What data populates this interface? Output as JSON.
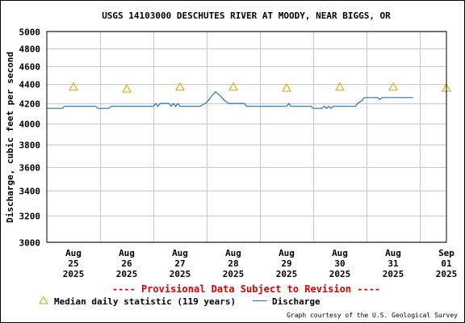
{
  "chart_data": {
    "type": "line",
    "title": "USGS 14103000 DESCHUTES RIVER AT MOODY, NEAR BIGGS, OR",
    "ylabel": "Discharge, cubic feet per second",
    "xlabel": "",
    "y_scale": "log",
    "ylim": [
      3000,
      5000
    ],
    "y_ticks": [
      {
        "value": 3000,
        "label": "3000"
      },
      {
        "value": 3200,
        "label": "3200"
      },
      {
        "value": 3400,
        "label": "3400"
      },
      {
        "value": 3600,
        "label": "3600"
      },
      {
        "value": 3800,
        "label": "3800"
      },
      {
        "value": 4000,
        "label": "4000"
      },
      {
        "value": 4200,
        "label": "4200"
      },
      {
        "value": 4400,
        "label": "4400"
      },
      {
        "value": 4600,
        "label": "4600"
      },
      {
        "value": 4800,
        "label": "4800"
      },
      {
        "value": 5000,
        "label": "5000"
      }
    ],
    "xlim": [
      "2025-08-25 00:00",
      "2025-09-01 12:00"
    ],
    "x_ticks": [
      {
        "date": "2025-08-25 12:00",
        "month": "Aug",
        "day": "25",
        "year": "2025"
      },
      {
        "date": "2025-08-26 12:00",
        "month": "Aug",
        "day": "26",
        "year": "2025"
      },
      {
        "date": "2025-08-27 12:00",
        "month": "Aug",
        "day": "27",
        "year": "2025"
      },
      {
        "date": "2025-08-28 12:00",
        "month": "Aug",
        "day": "28",
        "year": "2025"
      },
      {
        "date": "2025-08-29 12:00",
        "month": "Aug",
        "day": "29",
        "year": "2025"
      },
      {
        "date": "2025-08-30 12:00",
        "month": "Aug",
        "day": "30",
        "year": "2025"
      },
      {
        "date": "2025-08-31 12:00",
        "month": "Aug",
        "day": "31",
        "year": "2025"
      },
      {
        "date": "2025-09-01 12:00",
        "month": "Sep",
        "day": "01",
        "year": "2025"
      }
    ],
    "grid": true,
    "series": [
      {
        "name": "Discharge",
        "color": "#1f77b4",
        "points": [
          [
            "2025-08-25 00:00",
            4150
          ],
          [
            "2025-08-25 07:00",
            4150
          ],
          [
            "2025-08-25 08:00",
            4170
          ],
          [
            "2025-08-25 22:00",
            4170
          ],
          [
            "2025-08-25 23:00",
            4150
          ],
          [
            "2025-08-26 04:00",
            4150
          ],
          [
            "2025-08-26 05:00",
            4170
          ],
          [
            "2025-08-27 00:00",
            4170
          ],
          [
            "2025-08-27 01:00",
            4200
          ],
          [
            "2025-08-27 02:00",
            4170
          ],
          [
            "2025-08-27 03:00",
            4200
          ],
          [
            "2025-08-27 07:00",
            4200
          ],
          [
            "2025-08-27 08:00",
            4170
          ],
          [
            "2025-08-27 09:00",
            4200
          ],
          [
            "2025-08-27 10:00",
            4170
          ],
          [
            "2025-08-27 11:00",
            4200
          ],
          [
            "2025-08-27 12:00",
            4170
          ],
          [
            "2025-08-27 21:00",
            4170
          ],
          [
            "2025-08-28 00:00",
            4210
          ],
          [
            "2025-08-28 02:00",
            4270
          ],
          [
            "2025-08-28 04:00",
            4320
          ],
          [
            "2025-08-28 06:00",
            4280
          ],
          [
            "2025-08-28 08:00",
            4230
          ],
          [
            "2025-08-28 10:00",
            4200
          ],
          [
            "2025-08-28 17:00",
            4200
          ],
          [
            "2025-08-28 18:00",
            4170
          ],
          [
            "2025-08-29 12:00",
            4170
          ],
          [
            "2025-08-29 13:00",
            4200
          ],
          [
            "2025-08-29 14:00",
            4170
          ],
          [
            "2025-08-29 23:00",
            4170
          ],
          [
            "2025-08-30 00:00",
            4150
          ],
          [
            "2025-08-30 04:00",
            4150
          ],
          [
            "2025-08-30 05:00",
            4170
          ],
          [
            "2025-08-30 06:00",
            4150
          ],
          [
            "2025-08-30 07:00",
            4170
          ],
          [
            "2025-08-30 08:00",
            4150
          ],
          [
            "2025-08-30 09:00",
            4170
          ],
          [
            "2025-08-30 19:00",
            4170
          ],
          [
            "2025-08-30 20:00",
            4200
          ],
          [
            "2025-08-30 22:00",
            4230
          ],
          [
            "2025-08-30 23:00",
            4260
          ],
          [
            "2025-08-31 05:00",
            4260
          ],
          [
            "2025-08-31 06:00",
            4240
          ],
          [
            "2025-08-31 07:00",
            4260
          ],
          [
            "2025-08-31 21:00",
            4260
          ]
        ]
      },
      {
        "name": "Median daily statistic (119 years)",
        "color": "#e09b00",
        "marker": "triangle",
        "points": [
          [
            "2025-08-25 12:00",
            4370
          ],
          [
            "2025-08-26 12:00",
            4350
          ],
          [
            "2025-08-27 12:00",
            4370
          ],
          [
            "2025-08-28 12:00",
            4370
          ],
          [
            "2025-08-29 12:00",
            4360
          ],
          [
            "2025-08-30 12:00",
            4370
          ],
          [
            "2025-08-31 12:00",
            4370
          ],
          [
            "2025-09-01 12:00",
            4360
          ]
        ]
      }
    ],
    "legend": {
      "placement": "bottom",
      "items": [
        {
          "label": "Median daily statistic (119 years)",
          "marker": "triangle",
          "color": "#e09b00"
        },
        {
          "label": "Discharge",
          "marker": "line",
          "color": "#1f77b4"
        }
      ]
    },
    "annotations": {
      "provisional": "---- Provisional Data Subject to Revision ----",
      "provisional_color": "#dd0000",
      "credit": "Graph courtesy of the U.S. Geological Survey"
    }
  }
}
